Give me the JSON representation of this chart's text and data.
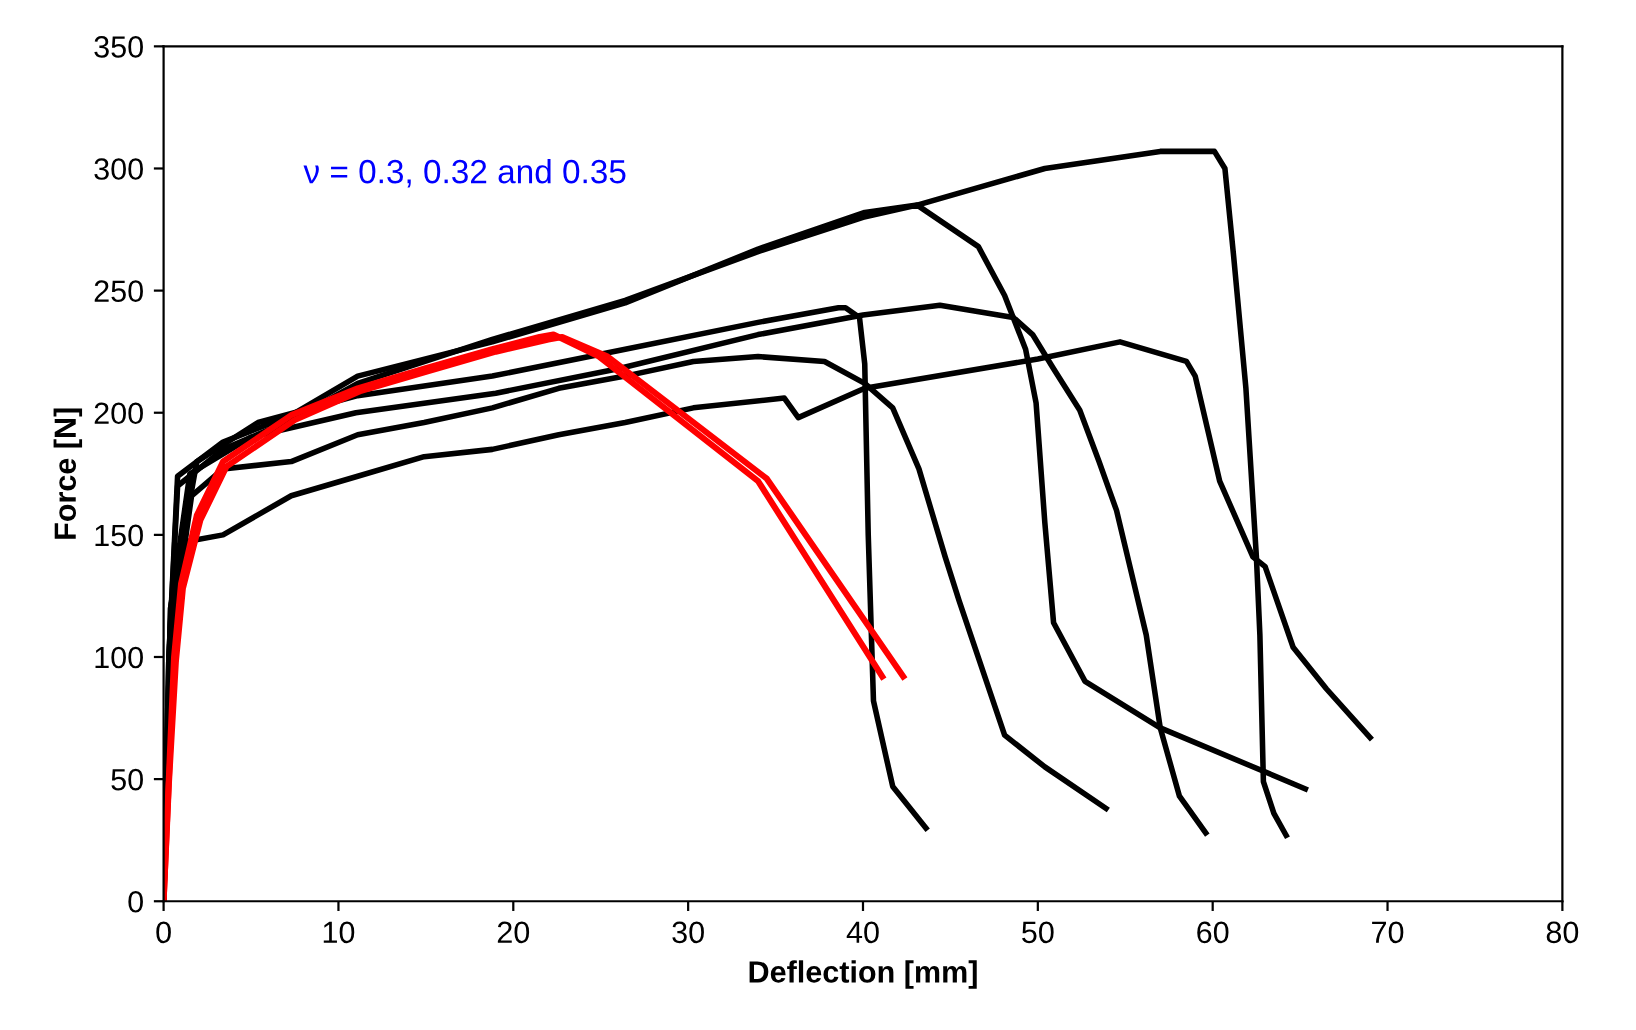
{
  "chart_data": {
    "type": "line",
    "xlabel": "Deflection [mm]",
    "ylabel": "Force [N]",
    "xlim": [
      0,
      80
    ],
    "ylim": [
      0,
      350
    ],
    "xticks": [
      0,
      10,
      20,
      30,
      40,
      50,
      60,
      70,
      80
    ],
    "yticks": [
      0,
      50,
      100,
      150,
      200,
      250,
      300,
      350
    ],
    "grid": false,
    "legend": false,
    "line_style": "solid",
    "marker": "none",
    "annotations": [
      "ν = 0.3, 0.32 and 0.35"
    ],
    "series": [
      {
        "color": "#000000",
        "x": [
          0,
          0.3,
          0.8,
          3.4,
          7.3,
          11.1,
          18.8,
          26.4,
          34,
          40.1,
          43.1,
          50.4,
          57,
          60.1,
          60.7,
          61.2,
          61.9,
          62.5,
          62.7,
          62.9,
          63.5,
          64.2
        ],
        "values": [
          0,
          100,
          174,
          188,
          199,
          215,
          229,
          245,
          267,
          282,
          285,
          300,
          307,
          307,
          300,
          264,
          210,
          141,
          109,
          49,
          36,
          27
        ]
      },
      {
        "color": "#000000",
        "x": [
          0,
          0.3,
          0.8,
          3.4,
          7.3,
          11.1,
          18.8,
          26.4,
          34,
          40,
          43.1,
          46.6,
          48.1,
          49.3,
          49.9,
          50.4,
          50.9,
          52.7,
          57,
          65.3
        ],
        "values": [
          0,
          100,
          170,
          185,
          197,
          212,
          230,
          246,
          266,
          280,
          285,
          268,
          248,
          226,
          204,
          155,
          114,
          90,
          71,
          46
        ]
      },
      {
        "color": "#000000",
        "x": [
          0,
          0.4,
          1.9,
          5.4,
          11.1,
          18.8,
          26.4,
          34,
          38.6,
          39,
          39.8,
          40.1,
          40.3,
          40.6,
          41.7,
          43.6
        ],
        "values": [
          0,
          120,
          180,
          196,
          207,
          215,
          226,
          237,
          243,
          243,
          239,
          220,
          150,
          82,
          47,
          30
        ]
      },
      {
        "color": "#000000",
        "x": [
          0,
          0.4,
          1.5,
          5,
          11,
          19,
          26,
          34,
          40,
          44.4,
          48.6,
          49.7,
          50.9,
          52.4,
          53.5,
          54.5,
          55.5,
          56.2,
          57,
          58.1,
          59.6
        ],
        "values": [
          0,
          120,
          175,
          190,
          200,
          208,
          218,
          232,
          240,
          244,
          239,
          232,
          218,
          201,
          180,
          160,
          130,
          109,
          71,
          43,
          28
        ]
      },
      {
        "color": "#000000",
        "x": [
          0,
          0.5,
          1.6,
          3.4,
          7.3,
          11.1,
          14.9,
          18.8,
          22.6,
          26.4,
          30.3,
          34,
          37.8,
          40.1,
          41.7,
          43.2,
          44.7,
          45.5,
          48.1,
          50.4,
          53.9
        ],
        "values": [
          0,
          110,
          166,
          177,
          180,
          191,
          196,
          202,
          210,
          215,
          221,
          223,
          221,
          212,
          202,
          177,
          141,
          123,
          68,
          55,
          38
        ]
      },
      {
        "color": "#000000",
        "x": [
          0,
          0.5,
          1.1,
          3.4,
          7.3,
          11.1,
          14.9,
          18.8,
          22.6,
          26.4,
          30.3,
          35.5,
          36.3,
          40.1,
          50,
          54.7,
          58.5,
          59,
          60.4,
          62.3,
          63,
          64.6,
          66.5,
          69
        ],
        "values": [
          0,
          100,
          147,
          150,
          166,
          174,
          182,
          185,
          191,
          196,
          202,
          206,
          198,
          210,
          222,
          229,
          221,
          215,
          172,
          141,
          137,
          104,
          87,
          67
        ]
      },
      {
        "color": "#ff0000",
        "x": [
          0,
          0.3,
          0.6,
          1.0,
          1.9,
          3.4,
          7.3,
          11.1,
          14.9,
          18.8,
          21.5,
          22.3,
          24.9,
          34,
          41.1
        ],
        "values": [
          0,
          50,
          100,
          130,
          158,
          180,
          199,
          210,
          218,
          226,
          231,
          232,
          223,
          172,
          92
        ]
      },
      {
        "color": "#ff0000",
        "x": [
          0,
          0.3,
          0.7,
          1.1,
          2.1,
          3.6,
          7.5,
          11.3,
          15.1,
          19,
          22,
          22.8,
          25.4,
          34.5,
          42.3
        ],
        "values": [
          0,
          48,
          98,
          128,
          156,
          178,
          197,
          209,
          217,
          225,
          230,
          231,
          223,
          173,
          92
        ]
      }
    ]
  }
}
